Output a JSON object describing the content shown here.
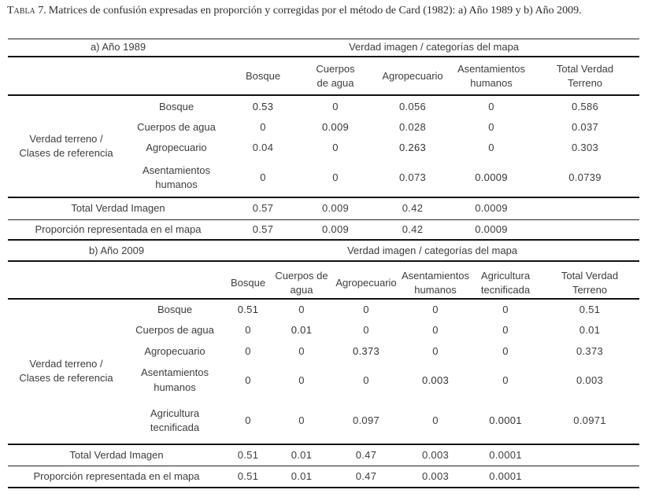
{
  "caption": {
    "label": "Tabla 7.",
    "text": "Matrices de confusión expresadas en proporción y corregidas por el método de Card (1982): a) Año 1989 y b) Año 2009."
  },
  "colors": {
    "text": "#3d3d3d",
    "rule": "#111111",
    "background": "#ffffff"
  },
  "table_a": {
    "year_label": "a) Año 1989",
    "span_header": "Verdad imagen / categorías del mapa",
    "columns": [
      "Bosque",
      "Cuerpos\nde agua",
      "Agropecuario",
      "Asentamientos\nhumanos",
      "Total Verdad\nTerreno"
    ],
    "row_group_label": "Verdad terreno /\nClases de referencia",
    "rows": [
      {
        "label": "Bosque",
        "values": [
          "0.53",
          "0",
          "0.056",
          "0",
          "0.586"
        ]
      },
      {
        "label": "Cuerpos de agua",
        "values": [
          "0",
          "0.009",
          "0.028",
          "0",
          "0.037"
        ]
      },
      {
        "label": "Agropecuario",
        "values": [
          "0.04",
          "0",
          "0.263",
          "0",
          "0.303"
        ]
      },
      {
        "label": "Asentamientos\nhumanos",
        "values": [
          "0",
          "0",
          "0.073",
          "0.0009",
          "0.0739"
        ]
      }
    ],
    "total_row": {
      "label": "Total Verdad Imagen",
      "values": [
        "0.57",
        "0.009",
        "0.42",
        "0.0009",
        ""
      ]
    },
    "proportion_row": {
      "label": "Proporción representada en el mapa",
      "values": [
        "0.57",
        "0.009",
        "0.42",
        "0.0009",
        ""
      ]
    }
  },
  "table_b": {
    "year_label": "b) Año 2009",
    "span_header": "Verdad imagen / categorías del mapa",
    "columns": [
      "Bosque",
      "Cuerpos de\nagua",
      "Agropecuario",
      "Asentamientos\nhumanos",
      "Agricultura\ntecnificada",
      "Total Verdad\nTerreno"
    ],
    "row_group_label": "Verdad terreno /\nClases de referencia",
    "rows": [
      {
        "label": "Bosque",
        "values": [
          "0.51",
          "0",
          "0",
          "0",
          "0",
          "0.51"
        ]
      },
      {
        "label": "Cuerpos de agua",
        "values": [
          "0",
          "0.01",
          "0",
          "0",
          "0",
          "0.01"
        ]
      },
      {
        "label": "Agropecuario",
        "values": [
          "0",
          "0",
          "0.373",
          "0",
          "0",
          "0.373"
        ]
      },
      {
        "label": "Asentamientos\nhumanos",
        "values": [
          "0",
          "0",
          "0",
          "0.003",
          "0",
          "0.003"
        ]
      },
      {
        "label": "Agricultura\ntecnificada",
        "values": [
          "0",
          "0",
          "0.097",
          "0",
          "0.0001",
          "0.0971"
        ]
      }
    ],
    "total_row": {
      "label": "Total Verdad Imagen",
      "values": [
        "0.51",
        "0.01",
        "0.47",
        "0.003",
        "0.0001",
        ""
      ]
    },
    "proportion_row": {
      "label": "Proporción representada en el mapa",
      "values": [
        "0.51",
        "0.01",
        "0.47",
        "0.003",
        "0.0001",
        ""
      ]
    }
  }
}
